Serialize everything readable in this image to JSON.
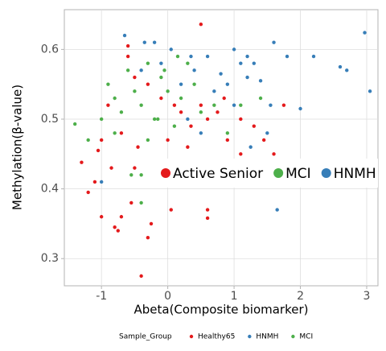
{
  "chart_data": {
    "type": "scatter",
    "x_label": "Abeta(Composite biomarker)",
    "y_label": "Methylation(β-value)",
    "xlim": [
      -1.56,
      3.17
    ],
    "ylim": [
      0.261,
      0.657
    ],
    "xticks": [
      -1,
      0,
      1,
      2,
      3
    ],
    "yticks": [
      0.3,
      0.4,
      0.5,
      0.6
    ],
    "grid": true,
    "legend_title": "Sample_Group",
    "legend_position": "bottom",
    "series": [
      {
        "name": "Healthy65",
        "color": "#e41a1c",
        "x": [
          -1.05,
          -1.3,
          -1.2,
          -1.0,
          -0.8,
          -0.75,
          -0.7,
          -0.55,
          -0.4,
          -0.3,
          -0.25,
          0.05,
          0.6,
          0.6,
          0.65,
          -0.6,
          -0.6,
          0.5,
          -0.5,
          -0.3,
          -0.1,
          0.1,
          0.2,
          0.35,
          0.5,
          0.6,
          0.75,
          0.9,
          1.1,
          1.3,
          1.45,
          1.6,
          1.75,
          -0.9,
          -1.0,
          -0.85,
          -0.7,
          -0.45,
          -0.2,
          0.0,
          0.3,
          0.85,
          1.1,
          -1.1,
          -0.5
        ],
        "values": [
          0.455,
          0.438,
          0.395,
          0.36,
          0.345,
          0.34,
          0.36,
          0.38,
          0.275,
          0.33,
          0.35,
          0.37,
          0.37,
          0.358,
          0.42,
          0.605,
          0.59,
          0.636,
          0.56,
          0.55,
          0.53,
          0.52,
          0.51,
          0.49,
          0.52,
          0.5,
          0.51,
          0.47,
          0.45,
          0.49,
          0.47,
          0.45,
          0.52,
          0.52,
          0.47,
          0.43,
          0.48,
          0.46,
          0.44,
          0.47,
          0.46,
          0.53,
          0.5,
          0.41,
          0.43
        ]
      },
      {
        "name": "HNMH",
        "color": "#377eb8",
        "x": [
          -0.65,
          -0.35,
          -0.2,
          0.05,
          0.35,
          0.6,
          1.1,
          1.3,
          1.6,
          2.2,
          2.6,
          2.7,
          2.97,
          3.05,
          2.0,
          1.55,
          1.4,
          1.2,
          0.9,
          0.7,
          0.4,
          0.2,
          -0.1,
          -0.4,
          1.65,
          1.7,
          1.5,
          1.25,
          1.0,
          0.8,
          -1.0,
          0.3,
          0.5,
          1.8,
          1.0,
          1.2
        ],
        "values": [
          0.62,
          0.61,
          0.61,
          0.6,
          0.59,
          0.59,
          0.58,
          0.58,
          0.61,
          0.59,
          0.575,
          0.57,
          0.624,
          0.54,
          0.515,
          0.52,
          0.555,
          0.56,
          0.55,
          0.54,
          0.57,
          0.55,
          0.58,
          0.57,
          0.37,
          0.44,
          0.48,
          0.46,
          0.52,
          0.565,
          0.41,
          0.5,
          0.48,
          0.59,
          0.6,
          0.59
        ]
      },
      {
        "name": "MCI",
        "color": "#4daf4a",
        "x": [
          -1.4,
          -1.2,
          -1.0,
          -0.9,
          -0.8,
          -0.7,
          -0.6,
          -0.5,
          -0.4,
          -0.3,
          -0.2,
          -0.1,
          0.0,
          0.1,
          0.2,
          0.3,
          0.4,
          0.5,
          0.7,
          0.9,
          1.1,
          1.4,
          -0.4,
          -0.4,
          -0.55,
          -0.15,
          -0.05,
          0.15,
          -0.8,
          -0.3
        ],
        "values": [
          0.493,
          0.47,
          0.5,
          0.55,
          0.53,
          0.51,
          0.57,
          0.54,
          0.52,
          0.58,
          0.5,
          0.56,
          0.54,
          0.49,
          0.53,
          0.58,
          0.55,
          0.51,
          0.52,
          0.48,
          0.52,
          0.53,
          0.42,
          0.38,
          0.42,
          0.5,
          0.57,
          0.59,
          0.48,
          0.47
        ]
      }
    ],
    "overlay_legend": [
      {
        "label": "Active Senior",
        "color": "#e41a1c"
      },
      {
        "label": "MCI",
        "color": "#4daf4a"
      },
      {
        "label": "HNMH",
        "color": "#377eb8"
      }
    ]
  }
}
